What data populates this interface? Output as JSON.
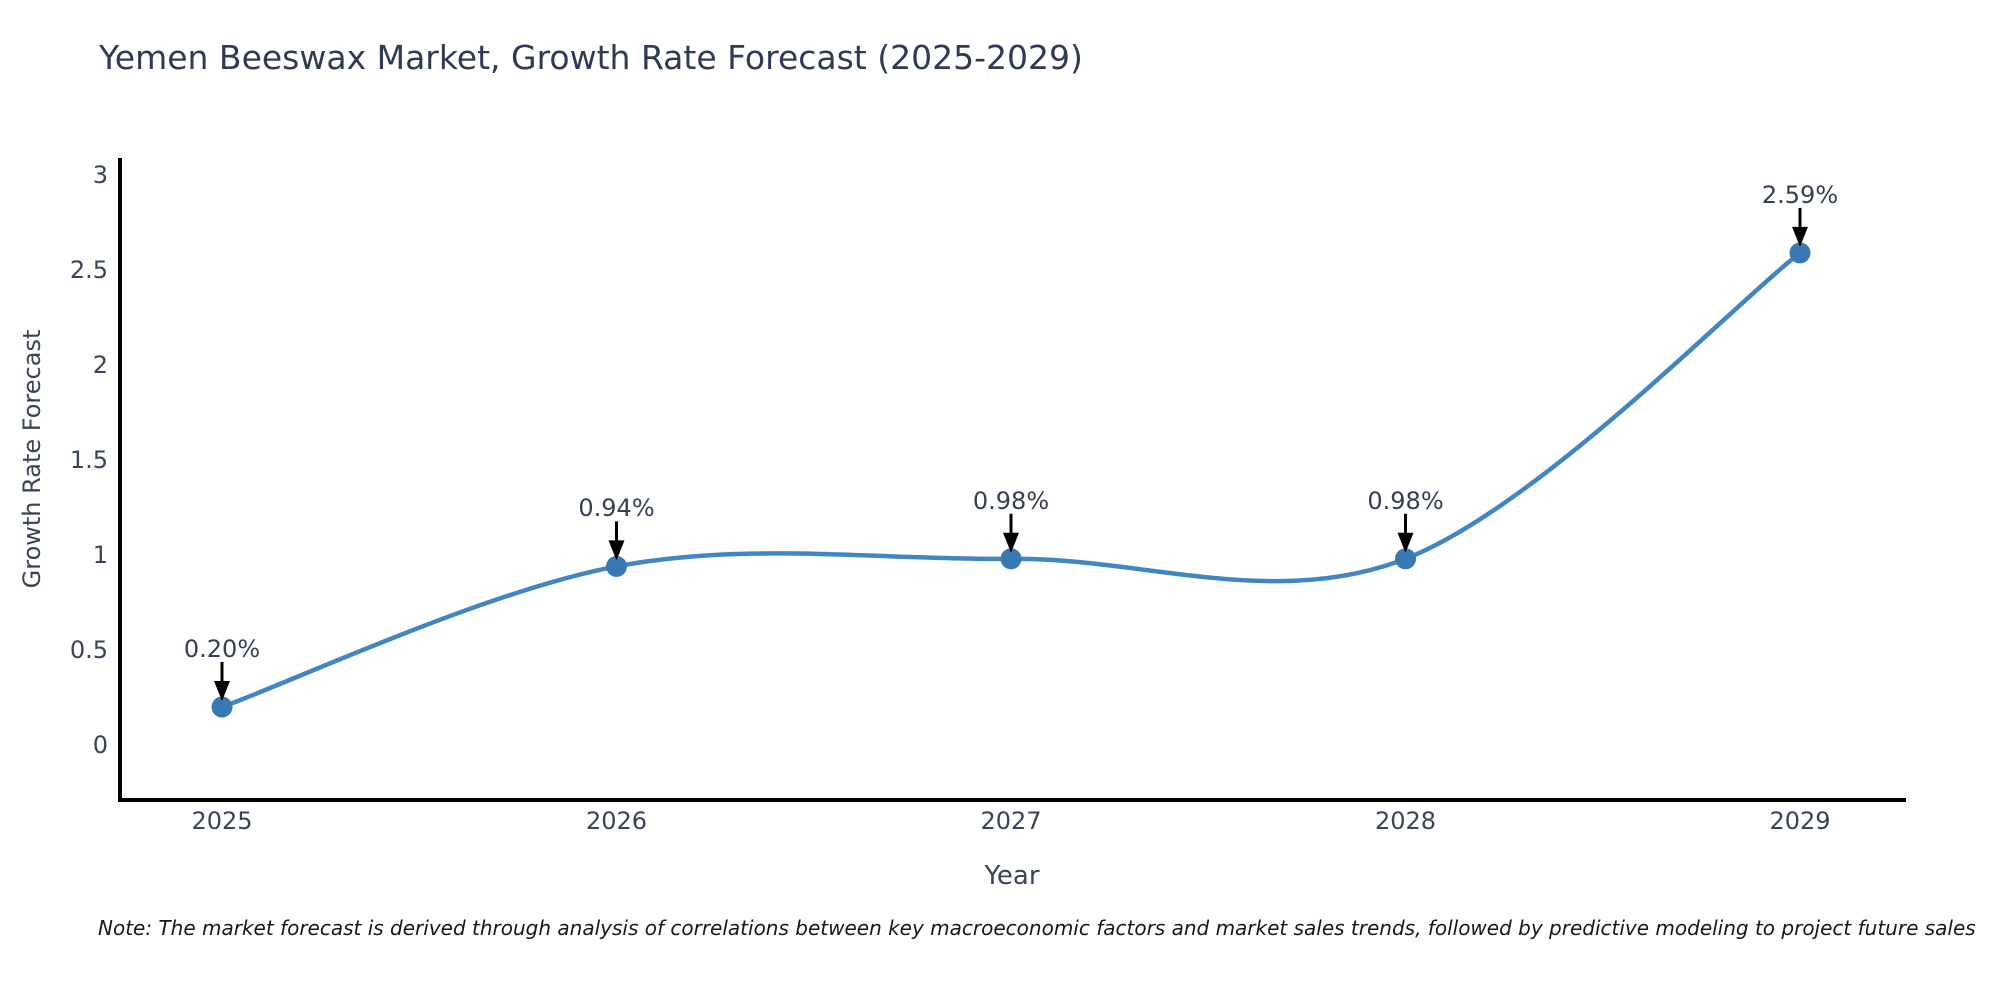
{
  "chart": {
    "note": "Note: The market forecast is derived through analysis of correlations between key macroeconomic factors and market sales trends, followed by predictive modeling to project future sales"
  },
  "chart_data": {
    "type": "line",
    "title": "Yemen Beeswax Market, Growth Rate Forecast (2025-2029)",
    "xlabel": "Year",
    "ylabel": "Growth Rate Forecast",
    "x": [
      2025,
      2026,
      2027,
      2028,
      2029
    ],
    "series": [
      {
        "name": "Growth Rate Forecast",
        "values": [
          0.2,
          0.94,
          0.98,
          0.98,
          2.59
        ]
      }
    ],
    "point_labels": [
      "0.20%",
      "0.94%",
      "0.98%",
      "0.98%",
      "2.59%"
    ],
    "unit": "percent",
    "yticks": [
      0,
      0.5,
      1,
      1.5,
      2,
      2.5,
      3
    ],
    "ylim": [
      -0.3,
      3.1
    ],
    "line_shape": "spline",
    "grid": false,
    "legend": "none",
    "annotation_arrows": true,
    "colors": {
      "line": "#4285c2",
      "marker": "#3878b5",
      "axis": "#000000",
      "arrow": "#000000",
      "title_text": "#2e3a56",
      "tick_text": "#39435a",
      "note_text": "#15181d",
      "background": "#ffffff"
    }
  }
}
